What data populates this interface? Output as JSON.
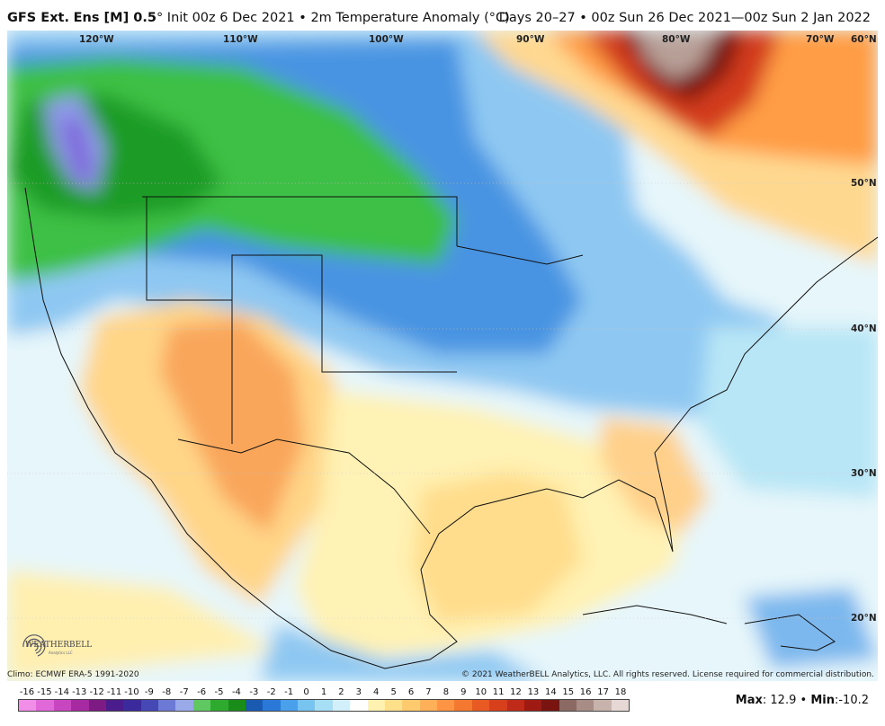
{
  "header": {
    "model": "GFS Ext.",
    "ens": "Ens [M] 0.5",
    "deg": "°",
    "init": "Init 00z 6 Dec 2021",
    "bullet": "•",
    "field": "2m Temperature Anomaly (°C)",
    "range": "Days 20–27 • 00z Sun 26 Dec 2021—00z Sun 2 Jan 2022"
  },
  "map": {
    "lon_labels": [
      "120°W",
      "110°W",
      "100°W",
      "90°W",
      "80°W",
      "70°W",
      "60°N"
    ],
    "lat_labels": [
      "50°N",
      "40°N",
      "30°N",
      "20°N"
    ]
  },
  "footer": {
    "climo": "Climo: ECMWF ERA-5 1991-2020",
    "copyright": "© 2021 WeatherBELL Analytics, LLC. All rights reserved. License required for commercial distribution."
  },
  "legend": {
    "ticks": [
      "-16",
      "-15",
      "-14",
      "-13",
      "-12",
      "-11",
      "-10",
      "-9",
      "-8",
      "-7",
      "-6",
      "-5",
      "-4",
      "-3",
      "-2",
      "-1",
      "0",
      "1",
      "2",
      "3",
      "4",
      "5",
      "6",
      "7",
      "8",
      "9",
      "10",
      "11",
      "12",
      "13",
      "14",
      "15",
      "16",
      "17",
      "18"
    ],
    "colors": [
      "#f08ee8",
      "#e068d8",
      "#c846c0",
      "#a82aa2",
      "#7e1a84",
      "#4a1c8c",
      "#3a2a9c",
      "#4648b6",
      "#6c7ad6",
      "#9aaae8",
      "#60c860",
      "#2eaa2e",
      "#1a8c1a",
      "#1a5ab0",
      "#2a78d8",
      "#4aa0ea",
      "#78c4f0",
      "#a6def6",
      "#d2f0fa",
      "#ffffff",
      "#fff2b0",
      "#ffe08a",
      "#ffca6e",
      "#ffb058",
      "#ff9444",
      "#f47830",
      "#e85a22",
      "#d8401c",
      "#c02a18",
      "#a01a14",
      "#7a1410",
      "#8a6a62",
      "#a88c86",
      "#c8b2ac",
      "#e6d8d4"
    ]
  },
  "stats": {
    "max_label": "Max",
    "max": "12.9",
    "sep": "•",
    "min_label": "Min",
    "min": "-10.2"
  },
  "logo": {
    "text": "WEATHERBELL",
    "sub": "Analytics LLC"
  }
}
